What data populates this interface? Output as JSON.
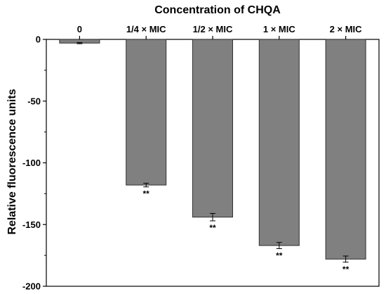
{
  "chart_data": {
    "type": "bar",
    "title": "Concentration of CHQA",
    "xlabel": "",
    "ylabel": "Relative fluorescence units",
    "categories": [
      "0",
      "1/4 × MIC",
      "1/2 × MIC",
      "1 × MIC",
      "2 × MIC"
    ],
    "values": [
      -3,
      -118,
      -144,
      -167,
      -178
    ],
    "error": [
      0.5,
      1.5,
      3,
      2.5,
      2.5
    ],
    "significance": [
      "",
      "**",
      "**",
      "**",
      "**"
    ],
    "ylim": [
      -200,
      0
    ],
    "yticks": [
      0,
      -50,
      -100,
      -150,
      -200
    ],
    "ytick_labels": [
      "0",
      "-50",
      "-100",
      "-150",
      "-200"
    ],
    "category_axis_position": "top",
    "grid": false,
    "legend": "none",
    "bar_color": "#808080",
    "bar_edge_color": "#303030"
  }
}
